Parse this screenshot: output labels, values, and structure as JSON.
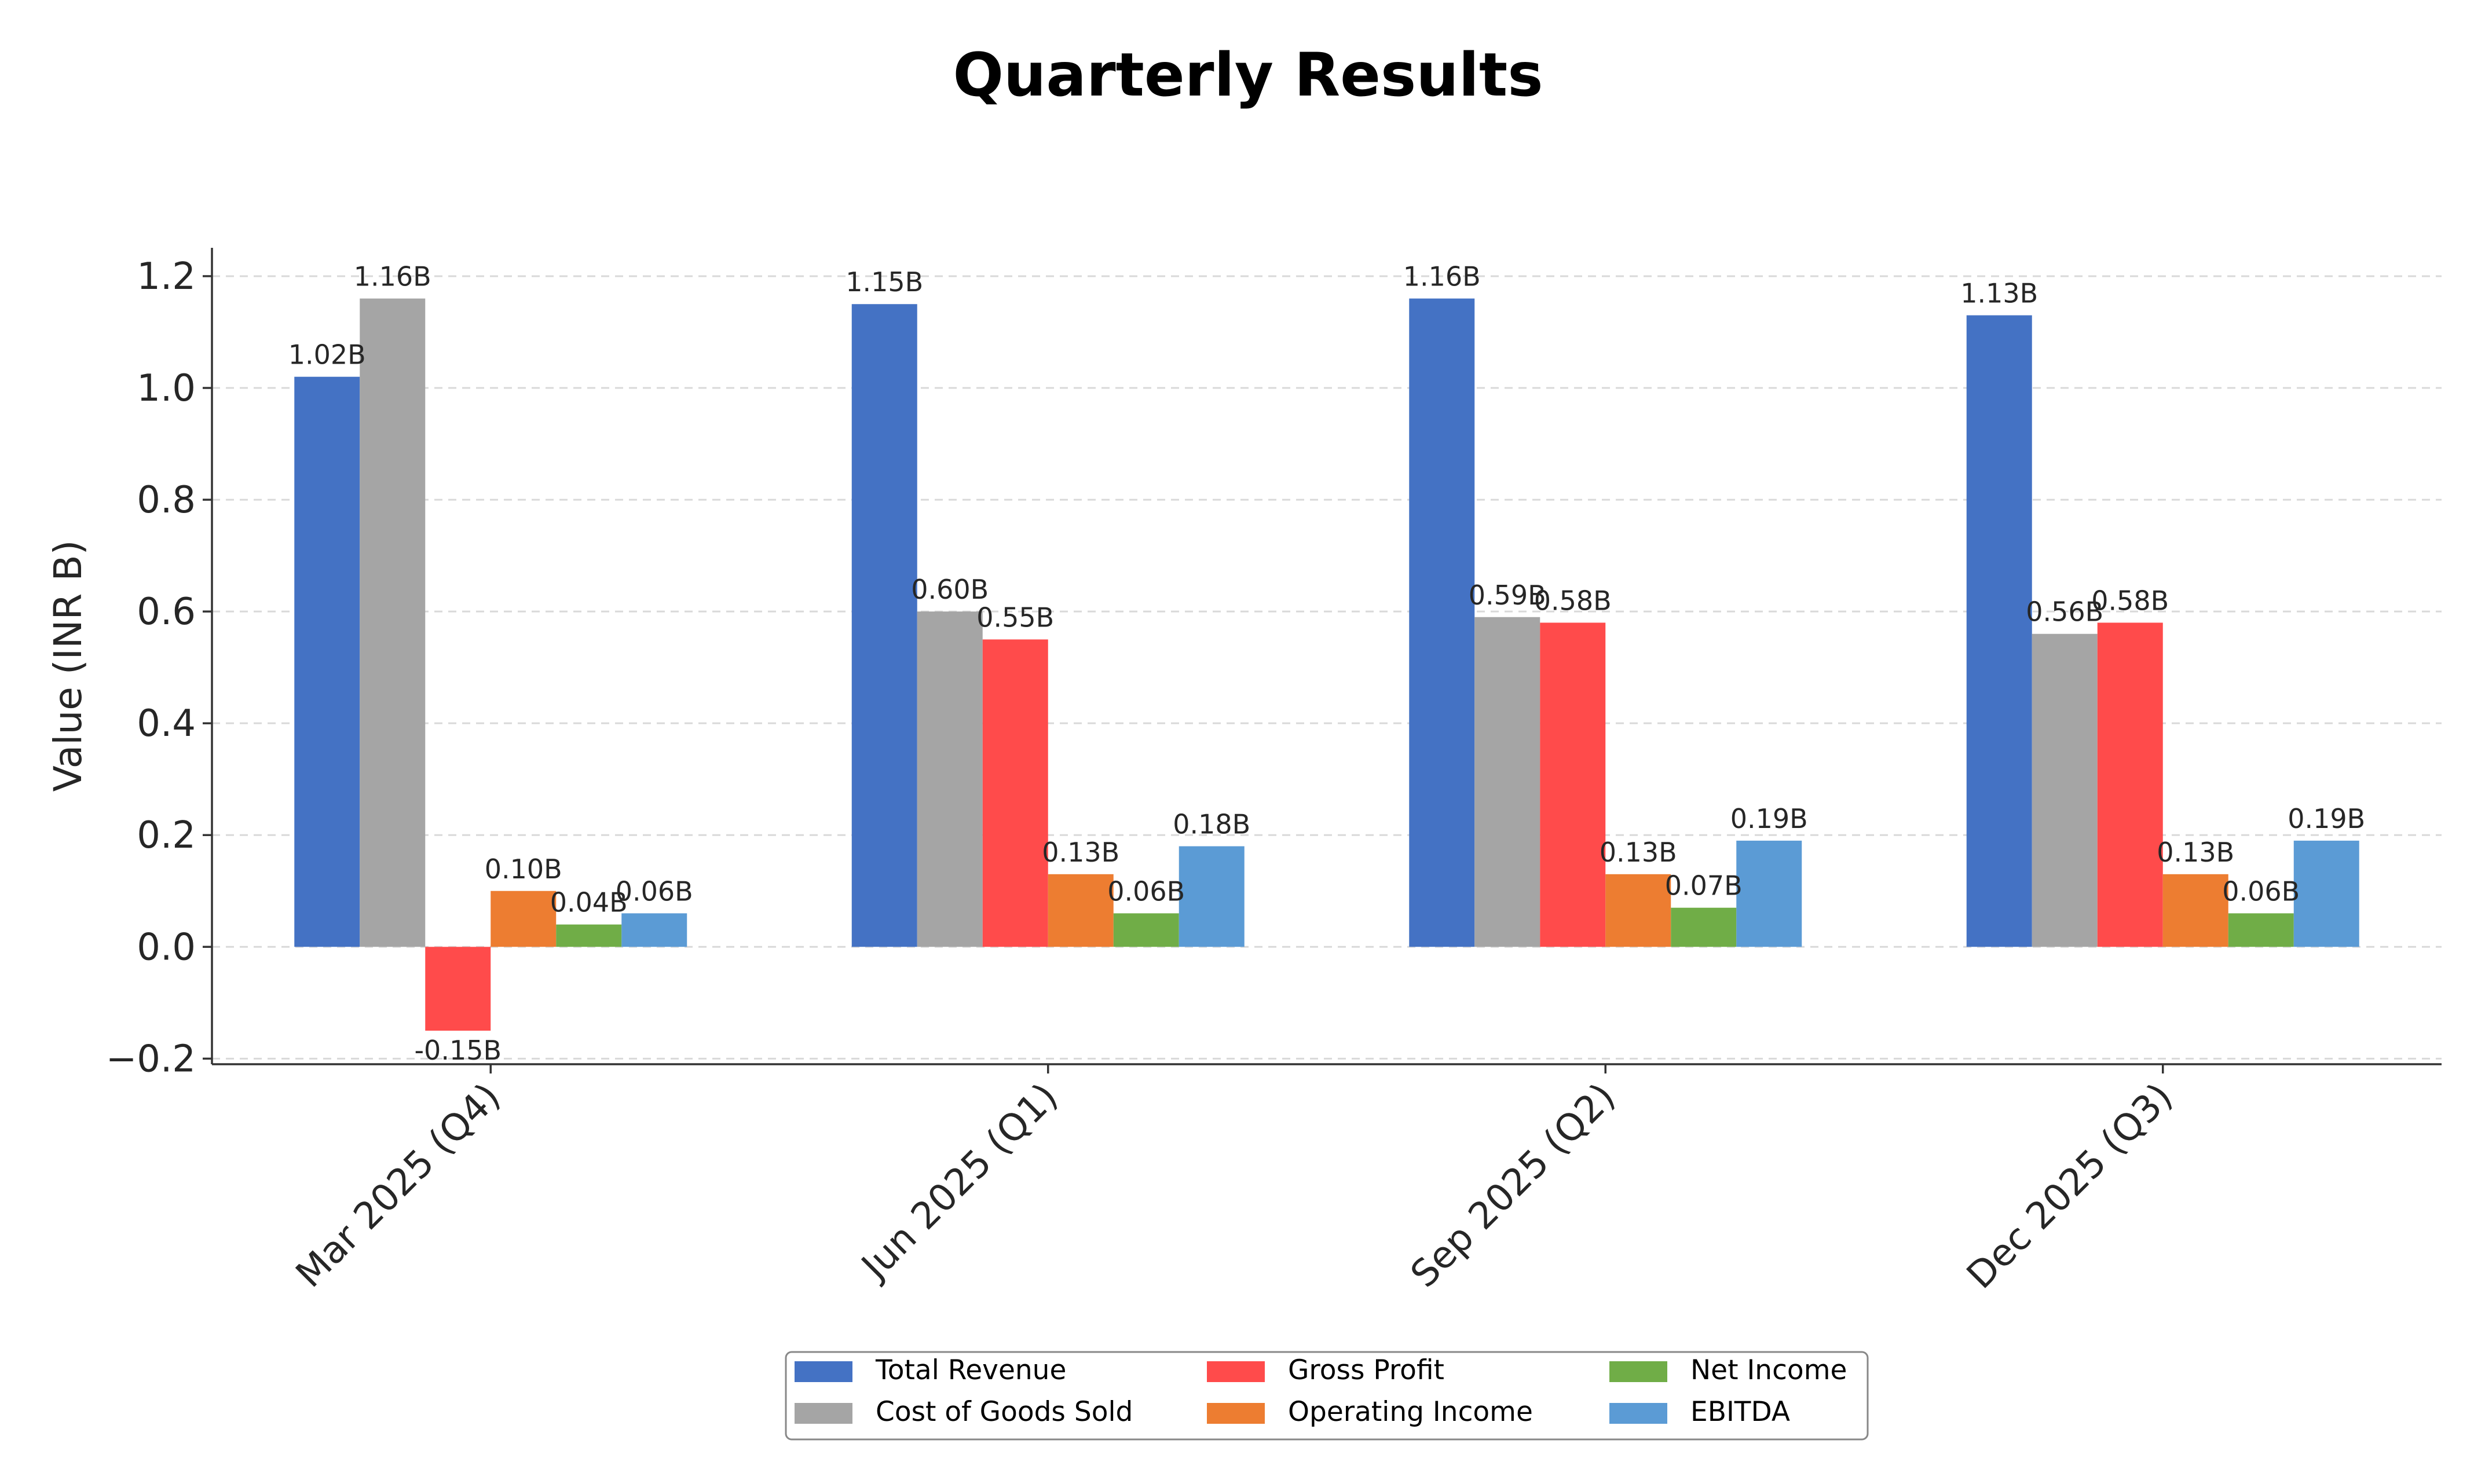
{
  "chart_data": {
    "type": "bar",
    "title": "Quarterly Results",
    "xlabel": "",
    "ylabel": "Value (INR B)",
    "ylim": [
      -0.21,
      1.23
    ],
    "yticks": [
      -0.2,
      0.0,
      0.2,
      0.4,
      0.6,
      0.8,
      1.0,
      1.2
    ],
    "ytick_labels": [
      "−0.2",
      "0.0",
      "0.2",
      "0.4",
      "0.6",
      "0.8",
      "1.0",
      "1.2"
    ],
    "grid": true,
    "legend_position": "bottom-center",
    "categories": [
      "Mar 2025 (Q4)",
      "Jun 2025 (Q1)",
      "Sep 2025 (Q2)",
      "Dec 2025 (Q3)"
    ],
    "series": [
      {
        "name": "Total Revenue",
        "color": "#4472c4",
        "values": [
          1.02,
          1.15,
          1.16,
          1.13
        ],
        "labels": [
          "1.02B",
          "1.15B",
          "1.16B",
          "1.13B"
        ]
      },
      {
        "name": "Cost of Goods Sold",
        "color": "#a5a5a5",
        "values": [
          1.16,
          0.6,
          0.59,
          0.56
        ],
        "labels": [
          "1.16B",
          "0.60B",
          "0.59B",
          "0.56B"
        ]
      },
      {
        "name": "Gross Profit",
        "color": "#ff4b4b",
        "values": [
          -0.15,
          0.55,
          0.58,
          0.58
        ],
        "labels": [
          "-0.15B",
          "0.55B",
          "0.58B",
          "0.58B"
        ]
      },
      {
        "name": "Operating Income",
        "color": "#ed7d31",
        "values": [
          0.1,
          0.13,
          0.13,
          0.13
        ],
        "labels": [
          "0.10B",
          "0.13B",
          "0.13B",
          "0.13B"
        ]
      },
      {
        "name": "Net Income",
        "color": "#70ad47",
        "values": [
          0.04,
          0.06,
          0.07,
          0.06
        ],
        "labels": [
          "0.04B",
          "0.06B",
          "0.07B",
          "0.06B"
        ]
      },
      {
        "name": "EBITDA",
        "color": "#5b9bd5",
        "values": [
          0.06,
          0.18,
          0.19,
          0.19
        ],
        "labels": [
          "0.06B",
          "0.18B",
          "0.19B",
          "0.19B"
        ]
      }
    ]
  }
}
